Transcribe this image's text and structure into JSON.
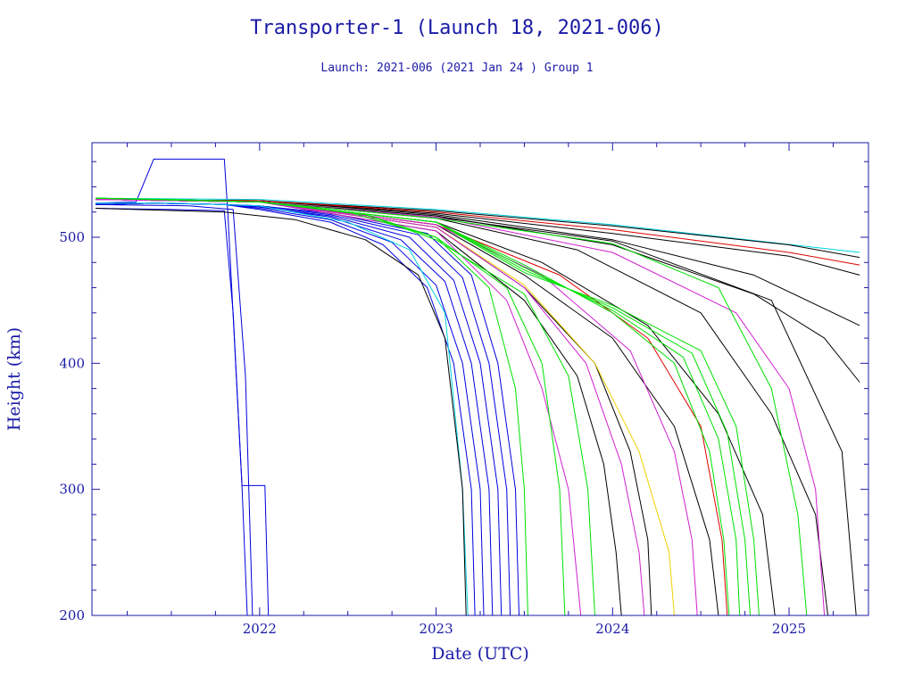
{
  "chart_data": {
    "type": "line",
    "title": "Transporter-1 (Launch 18, 2021-006)",
    "subtitle": "Launch: 2021-006  (2021 Jan 24 )  Group 1",
    "xlabel": "Date (UTC)",
    "ylabel": "Height (km)",
    "xlim": [
      2021.05,
      2025.45
    ],
    "ylim": [
      200,
      575
    ],
    "x_ticks": [
      2022,
      2023,
      2024,
      2025
    ],
    "x_tick_labels": [
      "2022",
      "2023",
      "2024",
      "2025"
    ],
    "y_ticks": [
      200,
      300,
      400,
      500
    ],
    "y_tick_labels": [
      "200",
      "300",
      "400",
      "500"
    ],
    "grid": false,
    "legend": "none",
    "colors": {
      "axis": "#1a1aa6",
      "blue": "#0000e0",
      "green": "#00e000",
      "black": "#000000",
      "magenta": "#d020d0",
      "cyan": "#00d0e0",
      "red": "#e00000",
      "yellow": "#f0d000"
    },
    "series": [
      {
        "color": "blue",
        "x": [
          2021.07,
          2021.5,
          2021.8,
          2021.85,
          2021.9,
          2021.93
        ],
        "y": [
          523,
          522,
          521,
          440,
          303,
          200
        ]
      },
      {
        "color": "blue",
        "x": [
          2021.07,
          2021.3,
          2021.4,
          2021.45,
          2021.8,
          2021.82,
          2021.9,
          2022.0,
          2022.03,
          2022.05
        ],
        "y": [
          527,
          528,
          562,
          562,
          562,
          520,
          303,
          303,
          303,
          200
        ]
      },
      {
        "color": "blue",
        "x": [
          2021.07,
          2021.6,
          2021.85,
          2021.92,
          2021.96
        ],
        "y": [
          526,
          525,
          522,
          390,
          200
        ]
      },
      {
        "color": "blue",
        "x": [
          2021.07,
          2021.4,
          2021.8,
          2022.0,
          2022.4,
          2022.7,
          2022.95,
          2023.1,
          2023.2,
          2023.22
        ],
        "y": [
          526,
          527,
          526,
          522,
          512,
          494,
          460,
          400,
          300,
          200
        ]
      },
      {
        "color": "blue",
        "x": [
          2021.07,
          2021.4,
          2021.8,
          2022.0,
          2022.4,
          2022.75,
          2023.0,
          2023.15,
          2023.25,
          2023.27
        ],
        "y": [
          526,
          527,
          526,
          523,
          514,
          496,
          462,
          400,
          300,
          200
        ]
      },
      {
        "color": "blue",
        "x": [
          2021.07,
          2021.4,
          2021.8,
          2022.0,
          2022.4,
          2022.8,
          2023.05,
          2023.2,
          2023.3,
          2023.32
        ],
        "y": [
          526,
          527,
          526,
          524,
          516,
          498,
          465,
          400,
          300,
          200
        ]
      },
      {
        "color": "blue",
        "x": [
          2021.07,
          2021.4,
          2021.8,
          2022.0,
          2022.4,
          2022.85,
          2023.1,
          2023.25,
          2023.35,
          2023.37
        ],
        "y": [
          526,
          527,
          526,
          524,
          517,
          500,
          466,
          400,
          300,
          200
        ]
      },
      {
        "color": "blue",
        "x": [
          2021.07,
          2021.4,
          2021.8,
          2022.0,
          2022.4,
          2022.9,
          2023.15,
          2023.3,
          2023.4,
          2023.42
        ],
        "y": [
          526,
          527,
          526,
          525,
          518,
          502,
          468,
          400,
          300,
          200
        ]
      },
      {
        "color": "blue",
        "x": [
          2021.07,
          2021.4,
          2021.8,
          2022.0,
          2022.4,
          2022.95,
          2023.2,
          2023.35,
          2023.45,
          2023.47
        ],
        "y": [
          526,
          527,
          526,
          525,
          519,
          503,
          470,
          400,
          300,
          200
        ]
      },
      {
        "color": "cyan",
        "x": [
          2021.07,
          2021.5,
          2022.0,
          2022.5,
          2022.85,
          2023.05,
          2023.15,
          2023.18
        ],
        "y": [
          527,
          527,
          525,
          512,
          490,
          440,
          300,
          200
        ]
      },
      {
        "color": "cyan",
        "x": [
          2021.07,
          2022.0,
          2023.0,
          2024.0,
          2025.4
        ],
        "y": [
          531,
          530,
          522,
          510,
          488
        ]
      },
      {
        "color": "black",
        "x": [
          2021.07,
          2021.8,
          2022.2,
          2022.6,
          2022.9,
          2023.05,
          2023.15,
          2023.17
        ],
        "y": [
          523,
          520,
          514,
          498,
          470,
          420,
          300,
          200
        ]
      },
      {
        "color": "black",
        "x": [
          2021.07,
          2022.0,
          2023.0,
          2024.0,
          2025.0,
          2025.4
        ],
        "y": [
          530,
          529,
          521,
          509,
          494,
          484
        ]
      },
      {
        "color": "black",
        "x": [
          2021.07,
          2022.0,
          2023.0,
          2024.0,
          2025.0,
          2025.4
        ],
        "y": [
          530,
          529,
          519,
          503,
          485,
          470
        ]
      },
      {
        "color": "black",
        "x": [
          2021.07,
          2022.0,
          2023.0,
          2024.0,
          2024.8,
          2025.4
        ],
        "y": [
          530,
          529,
          518,
          498,
          470,
          430
        ]
      },
      {
        "color": "black",
        "x": [
          2021.07,
          2022.0,
          2023.0,
          2024.0,
          2024.8,
          2025.2,
          2025.4
        ],
        "y": [
          530,
          528,
          517,
          494,
          455,
          420,
          385
        ]
      },
      {
        "color": "black",
        "x": [
          2021.07,
          2022.0,
          2023.0,
          2023.8,
          2024.5,
          2024.9,
          2025.15,
          2025.22
        ],
        "y": [
          530,
          528,
          515,
          490,
          440,
          360,
          280,
          200
        ]
      },
      {
        "color": "black",
        "x": [
          2021.07,
          2022.0,
          2023.0,
          2023.6,
          2024.2,
          2024.6,
          2024.85,
          2024.92
        ],
        "y": [
          530,
          528,
          512,
          480,
          430,
          360,
          280,
          200
        ]
      },
      {
        "color": "black",
        "x": [
          2021.07,
          2022.0,
          2023.0,
          2023.5,
          2024.0,
          2024.35,
          2024.55,
          2024.6
        ],
        "y": [
          530,
          528,
          510,
          470,
          420,
          350,
          260,
          200
        ]
      },
      {
        "color": "black",
        "x": [
          2021.07,
          2022.0,
          2023.0,
          2023.5,
          2023.9,
          2024.1,
          2024.2,
          2024.22
        ],
        "y": [
          530,
          528,
          508,
          460,
          400,
          330,
          260,
          200
        ]
      },
      {
        "color": "black",
        "x": [
          2021.07,
          2022.0,
          2023.0,
          2023.5,
          2023.8,
          2023.95,
          2024.02,
          2024.05
        ],
        "y": [
          530,
          528,
          505,
          450,
          390,
          320,
          250,
          200
        ]
      },
      {
        "color": "black",
        "x": [
          2021.07,
          2022.0,
          2023.0,
          2024.0,
          2024.9,
          2025.3,
          2025.38
        ],
        "y": [
          530,
          528,
          516,
          497,
          450,
          330,
          200
        ]
      },
      {
        "color": "red",
        "x": [
          2021.07,
          2022.0,
          2023.0,
          2024.0,
          2025.0,
          2025.4
        ],
        "y": [
          530,
          529,
          520,
          506,
          488,
          478
        ]
      },
      {
        "color": "red",
        "x": [
          2021.07,
          2022.0,
          2023.0,
          2023.7,
          2024.2,
          2024.5,
          2024.62,
          2024.65
        ],
        "y": [
          530,
          528,
          510,
          470,
          420,
          350,
          260,
          200
        ]
      },
      {
        "color": "yellow",
        "x": [
          2021.07,
          2022.0,
          2023.0,
          2023.5,
          2023.9,
          2024.15,
          2024.32,
          2024.35
        ],
        "y": [
          530,
          528,
          508,
          462,
          400,
          330,
          250,
          200
        ]
      },
      {
        "color": "magenta",
        "x": [
          2021.07,
          2022.0,
          2023.0,
          2023.5,
          2023.85,
          2024.05,
          2024.15,
          2024.18
        ],
        "y": [
          530,
          528,
          508,
          460,
          400,
          320,
          250,
          200
        ]
      },
      {
        "color": "magenta",
        "x": [
          2021.07,
          2022.0,
          2023.0,
          2023.4,
          2023.6,
          2023.75,
          2023.82
        ],
        "y": [
          530,
          528,
          505,
          450,
          380,
          300,
          200
        ]
      },
      {
        "color": "magenta",
        "x": [
          2021.07,
          2022.0,
          2023.0,
          2024.0,
          2024.7,
          2025.0,
          2025.15,
          2025.2
        ],
        "y": [
          530,
          528,
          516,
          488,
          440,
          380,
          300,
          200
        ]
      },
      {
        "color": "magenta",
        "x": [
          2021.07,
          2022.0,
          2023.0,
          2023.6,
          2024.1,
          2024.35,
          2024.45,
          2024.48
        ],
        "y": [
          530,
          528,
          510,
          470,
          410,
          330,
          260,
          200
        ]
      },
      {
        "color": "green",
        "x": [
          2021.07,
          2021.5,
          2022.0,
          2022.5,
          2023.0,
          2023.3,
          2023.45,
          2023.5,
          2023.52
        ],
        "y": [
          531,
          530,
          528,
          520,
          500,
          460,
          380,
          300,
          200
        ]
      },
      {
        "color": "green",
        "x": [
          2021.07,
          2022.0,
          2022.6,
          2023.0,
          2023.4,
          2023.6,
          2023.7,
          2023.73
        ],
        "y": [
          531,
          528,
          518,
          500,
          460,
          400,
          300,
          200
        ]
      },
      {
        "color": "green",
        "x": [
          2021.07,
          2022.0,
          2022.6,
          2023.0,
          2023.5,
          2023.75,
          2023.86,
          2023.9
        ],
        "y": [
          531,
          528,
          518,
          498,
          455,
          390,
          300,
          200
        ]
      },
      {
        "color": "green",
        "x": [
          2021.07,
          2022.0,
          2023.0,
          2023.5,
          2024.0,
          2024.35,
          2024.55,
          2024.63,
          2024.66
        ],
        "y": [
          531,
          528,
          512,
          478,
          440,
          400,
          330,
          260,
          200
        ]
      },
      {
        "color": "green",
        "x": [
          2021.07,
          2022.0,
          2023.0,
          2023.5,
          2024.0,
          2024.4,
          2024.6,
          2024.7,
          2024.72
        ],
        "y": [
          531,
          528,
          512,
          476,
          442,
          405,
          340,
          260,
          200
        ]
      },
      {
        "color": "green",
        "x": [
          2021.07,
          2022.0,
          2023.0,
          2023.5,
          2024.0,
          2024.45,
          2024.65,
          2024.75,
          2024.78
        ],
        "y": [
          531,
          528,
          512,
          474,
          444,
          408,
          345,
          260,
          200
        ]
      },
      {
        "color": "green",
        "x": [
          2021.07,
          2022.0,
          2023.0,
          2023.5,
          2024.0,
          2024.5,
          2024.7,
          2024.8,
          2024.83
        ],
        "y": [
          531,
          528,
          512,
          472,
          446,
          410,
          350,
          260,
          200
        ]
      },
      {
        "color": "green",
        "x": [
          2021.07,
          2022.0,
          2023.0,
          2024.0,
          2024.6,
          2024.9,
          2025.05,
          2025.1
        ],
        "y": [
          531,
          528,
          515,
          495,
          460,
          380,
          280,
          200
        ]
      }
    ]
  }
}
